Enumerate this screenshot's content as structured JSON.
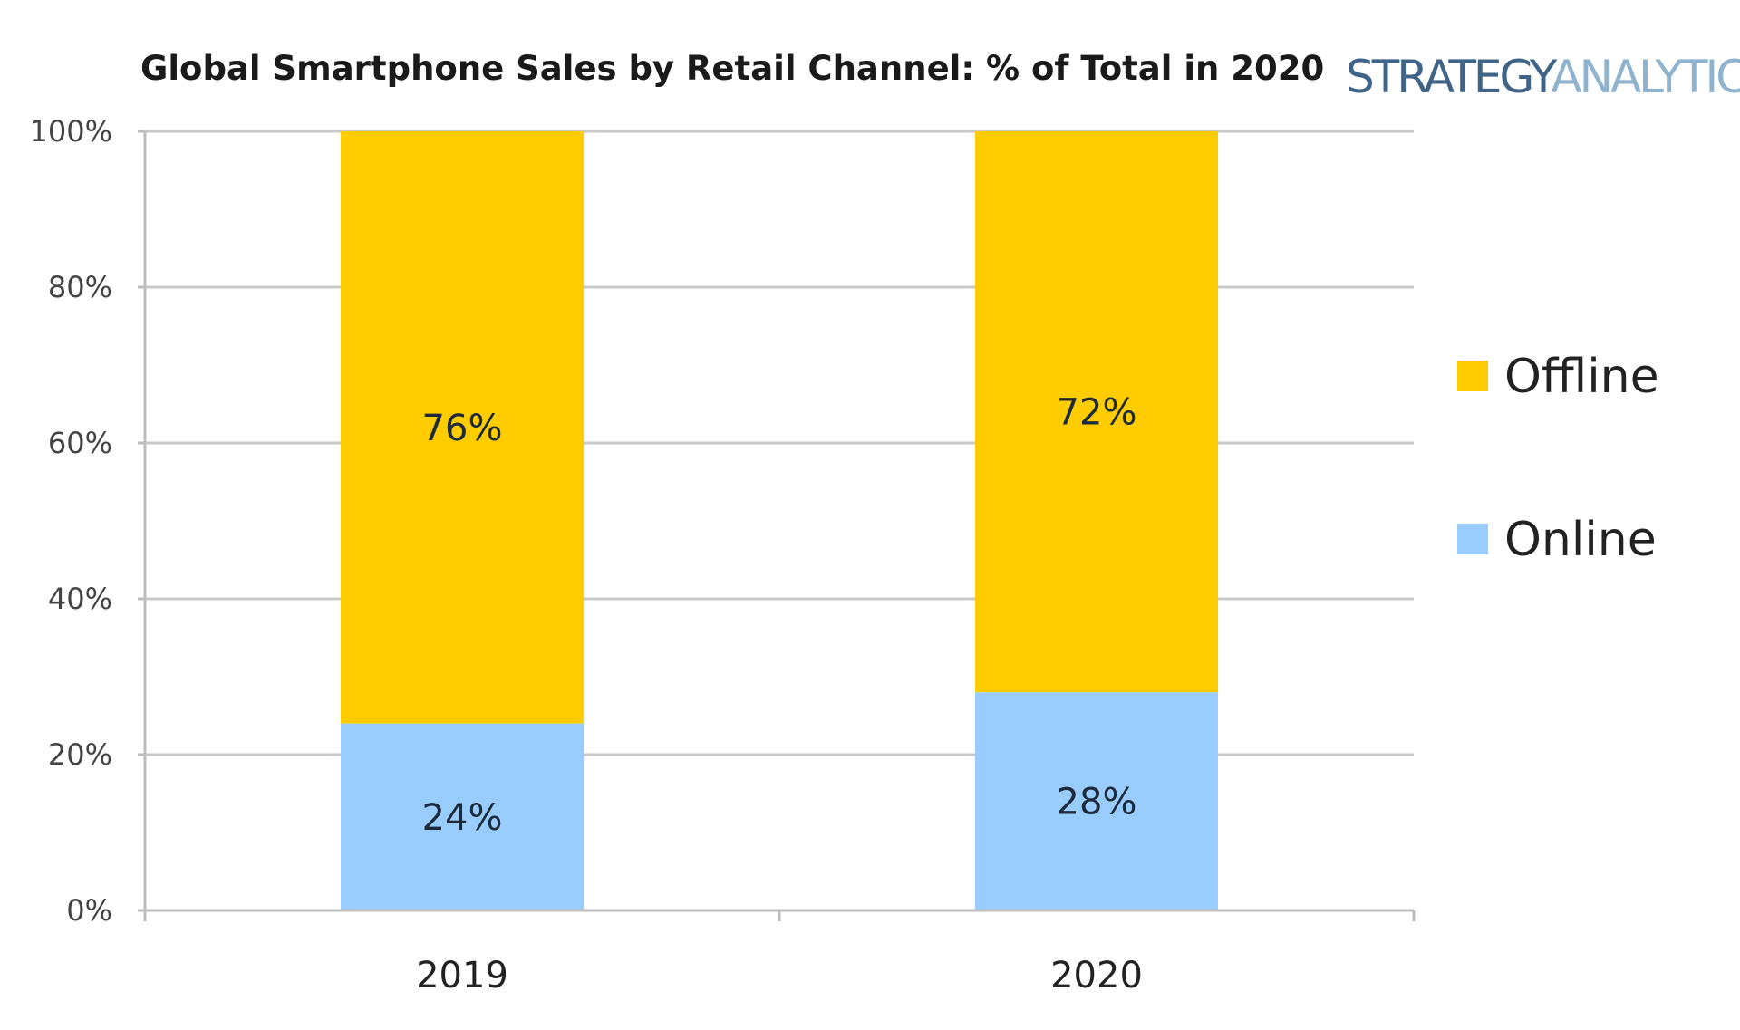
{
  "chart_data": {
    "type": "bar",
    "stacked": true,
    "title": "Global Smartphone Sales by Retail Channel: % of Total in 2020",
    "logo": {
      "part1": "STRATEGY",
      "part2": "ANALYTICS"
    },
    "categories": [
      "2019",
      "2020"
    ],
    "series": [
      {
        "name": "Online",
        "values": [
          24,
          28
        ],
        "color": "#99ccff",
        "labels": [
          "24%",
          "28%"
        ]
      },
      {
        "name": "Offline",
        "values": [
          76,
          72
        ],
        "color": "#ffcc00",
        "labels": [
          "76%",
          "72%"
        ]
      }
    ],
    "legend_order": [
      "Offline",
      "Online"
    ],
    "ylim": [
      0,
      100
    ],
    "yticks": [
      0,
      20,
      40,
      60,
      80,
      100
    ],
    "ytick_labels": [
      "0%",
      "20%",
      "40%",
      "60%",
      "80%",
      "100%"
    ],
    "xlabel": "",
    "ylabel": "",
    "grid": true,
    "legend_position": "right"
  }
}
